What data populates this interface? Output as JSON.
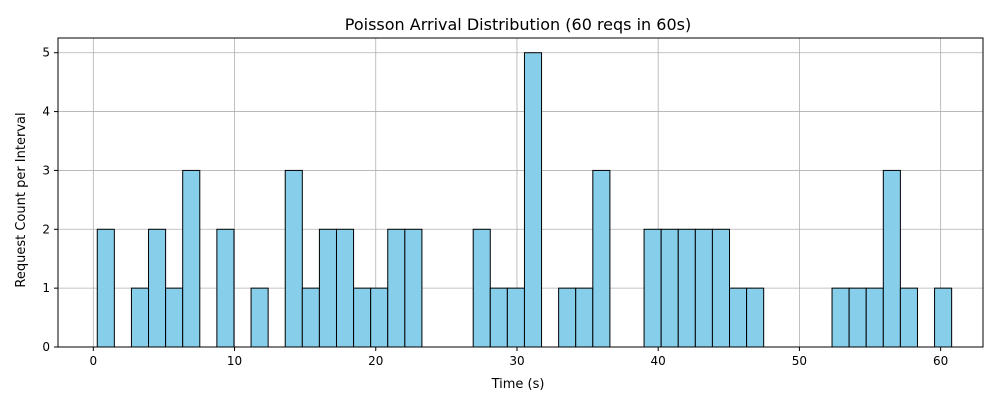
{
  "chart_data": {
    "type": "bar",
    "title": "Poisson Arrival Distribution (60 reqs in 60s)",
    "xlabel": "Time (s)",
    "ylabel": "Request Count per Interval",
    "xlim": [
      -2.5,
      63
    ],
    "ylim": [
      0,
      5.25
    ],
    "xticks": [
      0,
      10,
      20,
      30,
      40,
      50,
      60
    ],
    "yticks": [
      0,
      1,
      2,
      3,
      4,
      5
    ],
    "grid": true,
    "bin_edges": [
      0.28,
      1.49,
      2.7,
      3.91,
      5.12,
      6.33,
      7.54,
      8.75,
      9.96,
      11.17,
      12.38,
      13.59,
      14.8,
      16.01,
      17.22,
      18.43,
      19.64,
      20.85,
      22.06,
      23.27,
      24.48,
      25.69,
      26.9,
      28.11,
      29.32,
      30.53,
      31.74,
      32.95,
      34.16,
      35.37,
      36.58,
      37.79,
      39.0,
      40.21,
      41.42,
      42.63,
      43.84,
      45.05,
      46.26,
      47.47,
      48.68,
      49.89,
      51.1,
      52.31,
      53.52,
      54.73,
      55.94,
      57.15,
      58.36,
      59.57,
      60.78
    ],
    "values": [
      2,
      0,
      1,
      2,
      1,
      3,
      0,
      2,
      0,
      1,
      0,
      3,
      1,
      2,
      2,
      1,
      1,
      2,
      2,
      0,
      0,
      0,
      2,
      1,
      1,
      5,
      0,
      1,
      1,
      3,
      0,
      0,
      2,
      2,
      2,
      2,
      2,
      1,
      1,
      0,
      0,
      0,
      0,
      1,
      1,
      1,
      3,
      1,
      0,
      1
    ],
    "colors": {
      "bar_fill": "#87ceeb",
      "bar_edge": "#000000",
      "grid": "#b0b0b0",
      "axis": "#000000"
    }
  }
}
